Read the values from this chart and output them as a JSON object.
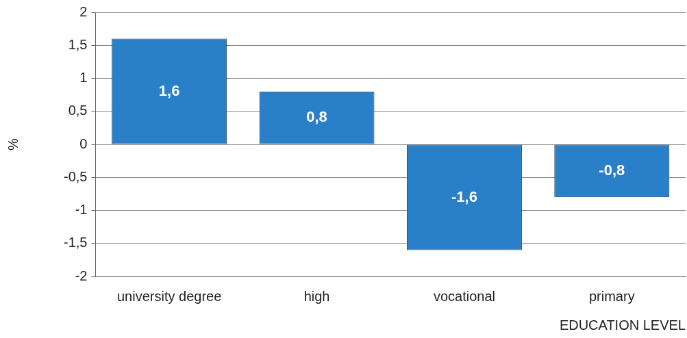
{
  "chart_data": {
    "type": "bar",
    "ylabel": "%",
    "xlabel": "EDUCATION LEVEL",
    "categories": [
      "university degree",
      "high",
      "vocational",
      "primary"
    ],
    "values": [
      1.6,
      0.8,
      -1.6,
      -0.8
    ],
    "value_labels": [
      "1,6",
      "0,8",
      "-1,6",
      "-0,8"
    ],
    "color": "#2a80c8",
    "ylim": [
      -2,
      2
    ],
    "yticks": [
      -2,
      {
        "value": -1.5,
        "label": "-1,5"
      },
      -1,
      {
        "value": -0.5,
        "label": "-0,5"
      },
      0,
      {
        "value": 0.5,
        "label": "0,5"
      },
      1,
      {
        "value": 1.5,
        "label": "1,5"
      },
      2
    ],
    "grid": "y",
    "legend": false
  }
}
